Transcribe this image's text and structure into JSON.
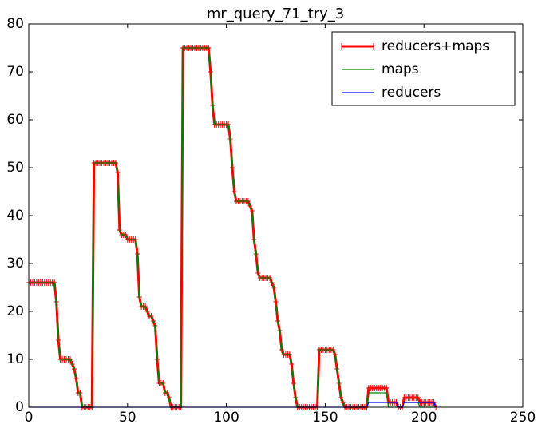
{
  "chart_data": {
    "type": "line",
    "title": "mr_query_71_try_3",
    "x": [
      0,
      1,
      2,
      3,
      4,
      5,
      6,
      7,
      8,
      9,
      10,
      11,
      12,
      13,
      14,
      15,
      16,
      17,
      18,
      19,
      20,
      21,
      22,
      23,
      24,
      25,
      26,
      27,
      28,
      29,
      30,
      31,
      32,
      33,
      34,
      35,
      36,
      37,
      38,
      39,
      40,
      41,
      42,
      43,
      44,
      45,
      46,
      47,
      48,
      49,
      50,
      51,
      52,
      53,
      54,
      55,
      56,
      57,
      58,
      59,
      60,
      61,
      62,
      63,
      64,
      65,
      66,
      67,
      68,
      69,
      70,
      71,
      72,
      73,
      74,
      75,
      76,
      77,
      78,
      79,
      80,
      81,
      82,
      83,
      84,
      85,
      86,
      87,
      88,
      89,
      90,
      91,
      92,
      93,
      94,
      95,
      96,
      97,
      98,
      99,
      100,
      101,
      102,
      103,
      104,
      105,
      106,
      107,
      108,
      109,
      110,
      111,
      112,
      113,
      114,
      115,
      116,
      117,
      118,
      119,
      120,
      121,
      122,
      123,
      124,
      125,
      126,
      127,
      128,
      129,
      130,
      131,
      132,
      133,
      134,
      135,
      136,
      137,
      138,
      139,
      140,
      141,
      142,
      143,
      144,
      145,
      146,
      147,
      148,
      149,
      150,
      151,
      152,
      153,
      154,
      155,
      156,
      157,
      158,
      159,
      160,
      161,
      162,
      163,
      164,
      165,
      166,
      167,
      168,
      169,
      170,
      171,
      172,
      173,
      174,
      175,
      176,
      177,
      178,
      179,
      180,
      181,
      182,
      183,
      184,
      185,
      186,
      187,
      188,
      189,
      190,
      191,
      192,
      193,
      194,
      195,
      196,
      197,
      198,
      199,
      200,
      201,
      202,
      203,
      204,
      205,
      206
    ],
    "series": [
      {
        "name": "reducers+maps",
        "color": "#ff0000",
        "marker": "+",
        "values": [
          26,
          26,
          26,
          26,
          26,
          26,
          26,
          26,
          26,
          26,
          26,
          26,
          26,
          26,
          22,
          14,
          10,
          10,
          10,
          10,
          10,
          10,
          9,
          8,
          6,
          3,
          3,
          0,
          0,
          0,
          0,
          0,
          0,
          51,
          51,
          51,
          51,
          51,
          51,
          51,
          51,
          51,
          51,
          51,
          51,
          49,
          37,
          36,
          36,
          36,
          35,
          35,
          35,
          35,
          35,
          32,
          23,
          21,
          21,
          21,
          20,
          19,
          19,
          18,
          17,
          10,
          5,
          5,
          5,
          3,
          3,
          2,
          0,
          0,
          0,
          0,
          0,
          0,
          75,
          75,
          75,
          75,
          75,
          75,
          75,
          75,
          75,
          75,
          75,
          75,
          75,
          75,
          70,
          63,
          59,
          59,
          59,
          59,
          59,
          59,
          59,
          59,
          56,
          50,
          45,
          43,
          43,
          43,
          43,
          43,
          43,
          43,
          42,
          41,
          35,
          32,
          28,
          27,
          27,
          27,
          27,
          27,
          27,
          26,
          25,
          22,
          18,
          16,
          12,
          11,
          11,
          11,
          11,
          9,
          5,
          2,
          0,
          0,
          0,
          0,
          0,
          0,
          0,
          0,
          0,
          0,
          0,
          12,
          12,
          12,
          12,
          12,
          12,
          12,
          12,
          11,
          8,
          5,
          2,
          1,
          0,
          0,
          0,
          0,
          0,
          0,
          0,
          0,
          0,
          0,
          0,
          0,
          4,
          4,
          4,
          4,
          4,
          4,
          4,
          4,
          4,
          4,
          1,
          1,
          1,
          1,
          1,
          0,
          0,
          0,
          2,
          2,
          2,
          2,
          2,
          2,
          2,
          2,
          1,
          1,
          1,
          1,
          1,
          1,
          1,
          1,
          0
        ]
      },
      {
        "name": "maps",
        "color": "#008000",
        "values": [
          26,
          26,
          26,
          26,
          26,
          26,
          26,
          26,
          26,
          26,
          26,
          26,
          26,
          26,
          22,
          14,
          10,
          10,
          10,
          10,
          10,
          10,
          9,
          8,
          6,
          3,
          3,
          0,
          0,
          0,
          0,
          0,
          0,
          51,
          51,
          51,
          51,
          51,
          51,
          51,
          51,
          51,
          51,
          51,
          51,
          49,
          37,
          36,
          36,
          36,
          35,
          35,
          35,
          35,
          35,
          32,
          23,
          21,
          21,
          21,
          20,
          19,
          19,
          18,
          17,
          10,
          5,
          5,
          5,
          3,
          3,
          2,
          0,
          0,
          0,
          0,
          0,
          0,
          75,
          75,
          75,
          75,
          75,
          75,
          75,
          75,
          75,
          75,
          75,
          75,
          75,
          75,
          70,
          63,
          59,
          59,
          59,
          59,
          59,
          59,
          59,
          59,
          56,
          50,
          45,
          43,
          43,
          43,
          43,
          43,
          43,
          43,
          42,
          41,
          35,
          32,
          28,
          27,
          27,
          27,
          27,
          27,
          27,
          26,
          25,
          22,
          18,
          16,
          12,
          11,
          11,
          11,
          11,
          9,
          5,
          2,
          0,
          0,
          0,
          0,
          0,
          0,
          0,
          0,
          0,
          0,
          0,
          12,
          12,
          12,
          12,
          12,
          12,
          12,
          12,
          11,
          8,
          5,
          2,
          1,
          0,
          0,
          0,
          0,
          0,
          0,
          0,
          0,
          0,
          0,
          0,
          0,
          3,
          3,
          3,
          3,
          3,
          3,
          3,
          3,
          3,
          3,
          0,
          0,
          0,
          0,
          0,
          0,
          0,
          0,
          1,
          1,
          1,
          1,
          1,
          1,
          1,
          1,
          0,
          0,
          0,
          0,
          0,
          0,
          0,
          0,
          0
        ]
      },
      {
        "name": "reducers",
        "color": "#0000ff",
        "values": [
          0,
          0,
          0,
          0,
          0,
          0,
          0,
          0,
          0,
          0,
          0,
          0,
          0,
          0,
          0,
          0,
          0,
          0,
          0,
          0,
          0,
          0,
          0,
          0,
          0,
          0,
          0,
          0,
          0,
          0,
          0,
          0,
          0,
          0,
          0,
          0,
          0,
          0,
          0,
          0,
          0,
          0,
          0,
          0,
          0,
          0,
          0,
          0,
          0,
          0,
          0,
          0,
          0,
          0,
          0,
          0,
          0,
          0,
          0,
          0,
          0,
          0,
          0,
          0,
          0,
          0,
          0,
          0,
          0,
          0,
          0,
          0,
          0,
          0,
          0,
          0,
          0,
          0,
          0,
          0,
          0,
          0,
          0,
          0,
          0,
          0,
          0,
          0,
          0,
          0,
          0,
          0,
          0,
          0,
          0,
          0,
          0,
          0,
          0,
          0,
          0,
          0,
          0,
          0,
          0,
          0,
          0,
          0,
          0,
          0,
          0,
          0,
          0,
          0,
          0,
          0,
          0,
          0,
          0,
          0,
          0,
          0,
          0,
          0,
          0,
          0,
          0,
          0,
          0,
          0,
          0,
          0,
          0,
          0,
          0,
          0,
          0,
          0,
          0,
          0,
          0,
          0,
          0,
          0,
          0,
          0,
          0,
          0,
          0,
          0,
          0,
          0,
          0,
          0,
          0,
          0,
          0,
          0,
          0,
          0,
          0,
          0,
          0,
          0,
          0,
          0,
          0,
          0,
          0,
          0,
          0,
          0,
          1,
          1,
          1,
          1,
          1,
          1,
          1,
          1,
          1,
          1,
          1,
          1,
          1,
          1,
          1,
          0,
          0,
          0,
          1,
          1,
          1,
          1,
          1,
          1,
          1,
          1,
          1,
          1,
          1,
          1,
          1,
          1,
          1,
          1,
          0
        ]
      }
    ],
    "xlim": [
      0,
      250
    ],
    "xticks": [
      0,
      50,
      100,
      150,
      200,
      250
    ],
    "ylim": [
      0,
      80
    ],
    "yticks": [
      0,
      10,
      20,
      30,
      40,
      50,
      60,
      70,
      80
    ],
    "legend": "upper right"
  }
}
